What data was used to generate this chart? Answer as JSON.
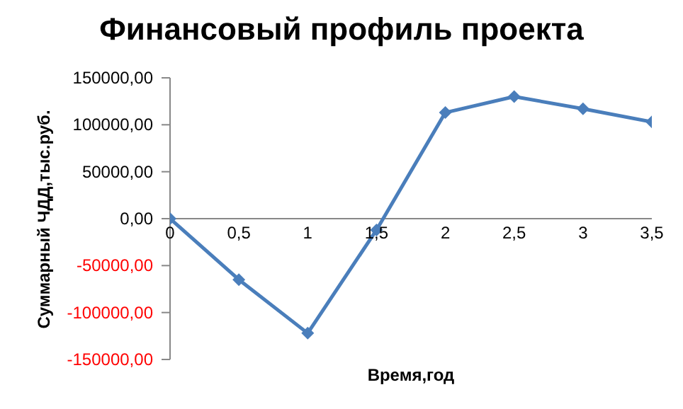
{
  "chart_data": {
    "type": "line",
    "title": "Финансовый профиль проекта",
    "xlabel": "Время,год",
    "ylabel": "Суммарный ЧДД,тыс.руб.",
    "x": [
      0,
      0.5,
      1,
      1.5,
      2,
      2.5,
      3,
      3.5
    ],
    "series": [
      {
        "color": "#4a7ebb",
        "values": [
          0,
          -65000,
          -122000,
          -12000,
          113000,
          130000,
          117000,
          103000
        ]
      }
    ],
    "xlim": [
      0,
      3.5
    ],
    "xticks": [
      0,
      {
        "value": 0.5,
        "label": "0,5"
      },
      1,
      {
        "value": 1.5,
        "label": "1,5"
      },
      2,
      {
        "value": 2.5,
        "label": "2,5"
      },
      3,
      {
        "value": 3.5,
        "label": "3,5"
      }
    ],
    "ylim": [
      -150000,
      150000
    ],
    "yticks": [
      {
        "value": -150000,
        "label": "-150000,00"
      },
      {
        "value": -100000,
        "label": "-100000,00"
      },
      {
        "value": -50000,
        "label": "-50000,00"
      },
      {
        "value": 0,
        "label": "0,00"
      },
      {
        "value": 50000,
        "label": "50000,00"
      },
      {
        "value": 100000,
        "label": "100000,00"
      },
      {
        "value": 150000,
        "label": "150000,00"
      }
    ],
    "grid": false,
    "legend": false,
    "marker": "diamond",
    "line_style": "solid"
  }
}
